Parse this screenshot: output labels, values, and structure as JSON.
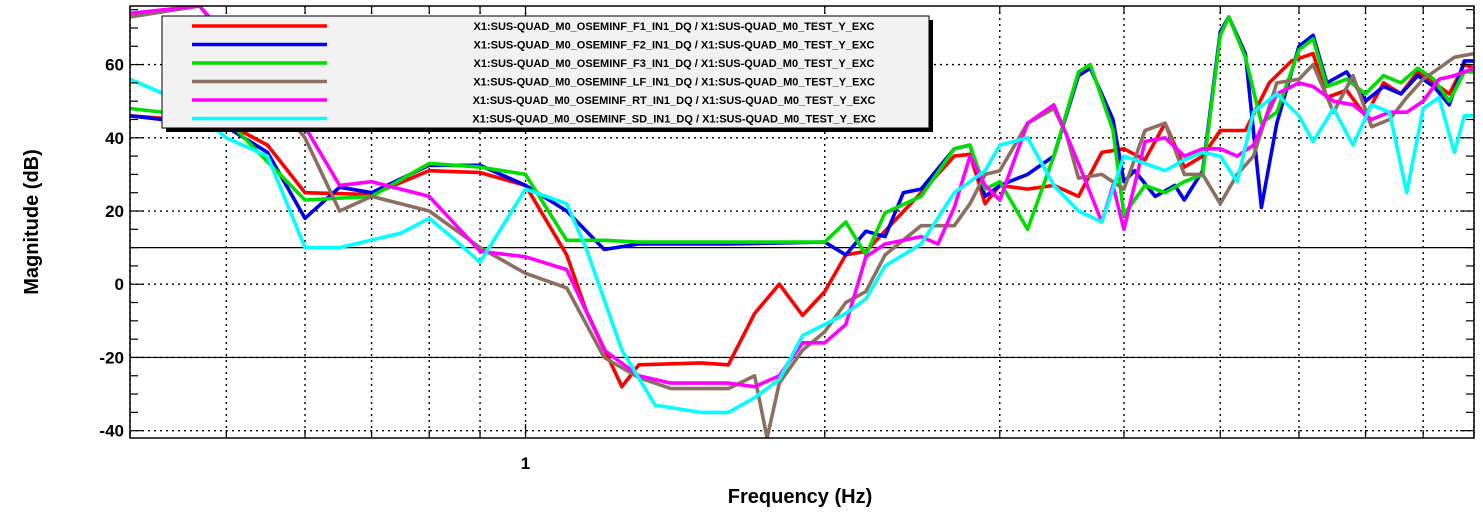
{
  "chart_data": {
    "type": "line",
    "title": "",
    "xlabel": "Frequency (Hz)",
    "ylabel": "Magnitude (dB)",
    "x_scale": "log",
    "xlim": [
      0.4,
      9.0
    ],
    "ylim": [
      -42,
      76
    ],
    "x_tick_labels": [
      {
        "value": 1,
        "label": "1"
      }
    ],
    "y_ticks": [
      -40,
      -20,
      0,
      20,
      40,
      60
    ],
    "y_tick_labels": [
      "-40",
      "-20",
      "0",
      "20",
      "40",
      "60"
    ],
    "grid": true,
    "legend_position": "top-left",
    "series": [
      {
        "name": "X1:SUS-QUAD_M0_OSEMINF_F1_IN1_DQ / X1:SUS-QUAD_M0_TEST_Y_EXC",
        "color": "#ff0000",
        "points": [
          [
            0.4,
            46
          ],
          [
            0.5,
            44
          ],
          [
            0.55,
            38
          ],
          [
            0.6,
            25
          ],
          [
            0.7,
            24.5
          ],
          [
            0.8,
            31
          ],
          [
            0.9,
            30.5
          ],
          [
            1.0,
            27
          ],
          [
            1.1,
            8
          ],
          [
            1.15,
            -7
          ],
          [
            1.25,
            -28
          ],
          [
            1.3,
            -22
          ],
          [
            1.5,
            -21.5
          ],
          [
            1.6,
            -22
          ],
          [
            1.7,
            -8
          ],
          [
            1.8,
            0
          ],
          [
            1.9,
            -8.5
          ],
          [
            2.0,
            -2
          ],
          [
            2.1,
            8
          ],
          [
            2.2,
            9
          ],
          [
            2.5,
            25
          ],
          [
            2.7,
            35
          ],
          [
            2.8,
            35.5
          ],
          [
            2.9,
            22
          ],
          [
            3.0,
            27
          ],
          [
            3.2,
            26
          ],
          [
            3.4,
            27
          ],
          [
            3.6,
            24
          ],
          [
            3.8,
            36
          ],
          [
            4.0,
            37
          ],
          [
            4.2,
            34
          ],
          [
            4.4,
            44
          ],
          [
            4.6,
            32
          ],
          [
            4.8,
            35
          ],
          [
            5.0,
            42
          ],
          [
            5.3,
            42
          ],
          [
            5.6,
            55
          ],
          [
            5.9,
            61
          ],
          [
            6.2,
            63
          ],
          [
            6.4,
            51
          ],
          [
            6.7,
            53
          ],
          [
            7.0,
            46
          ],
          [
            7.3,
            55
          ],
          [
            7.6,
            52
          ],
          [
            7.9,
            58
          ],
          [
            8.2,
            55
          ],
          [
            8.5,
            52
          ],
          [
            8.8,
            60
          ],
          [
            9.0,
            59
          ]
        ]
      },
      {
        "name": "X1:SUS-QUAD_M0_OSEMINF_F2_IN1_DQ / X1:SUS-QUAD_M0_TEST_Y_EXC",
        "color": "#0000ee",
        "points": [
          [
            0.4,
            46
          ],
          [
            0.5,
            43
          ],
          [
            0.55,
            36
          ],
          [
            0.6,
            18
          ],
          [
            0.65,
            26.5
          ],
          [
            0.7,
            25
          ],
          [
            0.8,
            32.5
          ],
          [
            0.9,
            32.5
          ],
          [
            1.0,
            27
          ],
          [
            1.1,
            20
          ],
          [
            1.2,
            9.5
          ],
          [
            1.3,
            11
          ],
          [
            1.6,
            11
          ],
          [
            2.0,
            11.5
          ],
          [
            2.1,
            8
          ],
          [
            2.2,
            14.5
          ],
          [
            2.3,
            13
          ],
          [
            2.4,
            25
          ],
          [
            2.5,
            26
          ],
          [
            2.7,
            37
          ],
          [
            2.8,
            38
          ],
          [
            2.9,
            24
          ],
          [
            3.0,
            27
          ],
          [
            3.2,
            30
          ],
          [
            3.4,
            35
          ],
          [
            3.6,
            57
          ],
          [
            3.7,
            59
          ],
          [
            3.9,
            45
          ],
          [
            4.0,
            28
          ],
          [
            4.1,
            31
          ],
          [
            4.3,
            24
          ],
          [
            4.5,
            27
          ],
          [
            4.6,
            23
          ],
          [
            4.8,
            31
          ],
          [
            5.0,
            69
          ],
          [
            5.1,
            73
          ],
          [
            5.3,
            63
          ],
          [
            5.5,
            21
          ],
          [
            5.7,
            44
          ],
          [
            6.0,
            65
          ],
          [
            6.2,
            68
          ],
          [
            6.4,
            55
          ],
          [
            6.7,
            58
          ],
          [
            7.0,
            50
          ],
          [
            7.3,
            54
          ],
          [
            7.6,
            52
          ],
          [
            7.9,
            57
          ],
          [
            8.2,
            54
          ],
          [
            8.5,
            49
          ],
          [
            8.8,
            61
          ],
          [
            9.0,
            61
          ]
        ]
      },
      {
        "name": "X1:SUS-QUAD_M0_OSEMINF_F3_IN1_DQ / X1:SUS-QUAD_M0_TEST_Y_EXC",
        "color": "#00dd00",
        "points": [
          [
            0.4,
            48
          ],
          [
            0.5,
            45
          ],
          [
            0.6,
            23
          ],
          [
            0.7,
            24
          ],
          [
            0.8,
            33
          ],
          [
            0.9,
            32
          ],
          [
            1.0,
            30
          ],
          [
            1.1,
            12
          ],
          [
            1.2,
            12
          ],
          [
            1.3,
            11.5
          ],
          [
            1.6,
            11.5
          ],
          [
            2.0,
            11.5
          ],
          [
            2.1,
            17
          ],
          [
            2.2,
            8
          ],
          [
            2.3,
            19.5
          ],
          [
            2.5,
            24
          ],
          [
            2.7,
            37
          ],
          [
            2.8,
            38
          ],
          [
            2.9,
            26
          ],
          [
            3.0,
            28
          ],
          [
            3.2,
            15
          ],
          [
            3.4,
            35
          ],
          [
            3.6,
            58
          ],
          [
            3.7,
            60
          ],
          [
            3.9,
            42
          ],
          [
            4.0,
            19
          ],
          [
            4.2,
            27
          ],
          [
            4.4,
            25
          ],
          [
            4.6,
            28
          ],
          [
            4.8,
            30
          ],
          [
            5.0,
            68
          ],
          [
            5.1,
            73
          ],
          [
            5.3,
            62
          ],
          [
            5.5,
            44
          ],
          [
            5.7,
            47
          ],
          [
            6.0,
            64
          ],
          [
            6.2,
            67
          ],
          [
            6.4,
            54
          ],
          [
            6.7,
            56
          ],
          [
            7.0,
            52
          ],
          [
            7.3,
            57
          ],
          [
            7.6,
            55
          ],
          [
            7.9,
            59
          ],
          [
            8.2,
            56
          ],
          [
            8.5,
            50
          ],
          [
            8.8,
            58
          ],
          [
            9.0,
            58
          ]
        ]
      },
      {
        "name": "X1:SUS-QUAD_M0_OSEMINF_LF_IN1_DQ / X1:SUS-QUAD_M0_TEST_Y_EXC",
        "color": "#8b6f60",
        "points": [
          [
            0.4,
            73
          ],
          [
            0.47,
            76
          ],
          [
            0.6,
            40
          ],
          [
            0.65,
            20
          ],
          [
            0.7,
            24
          ],
          [
            0.8,
            20
          ],
          [
            0.9,
            10
          ],
          [
            1.0,
            3
          ],
          [
            1.1,
            -1
          ],
          [
            1.2,
            -20
          ],
          [
            1.3,
            -25.5
          ],
          [
            1.4,
            -28.5
          ],
          [
            1.6,
            -28.5
          ],
          [
            1.7,
            -25
          ],
          [
            1.75,
            -42
          ],
          [
            1.8,
            -27
          ],
          [
            1.9,
            -18
          ],
          [
            2.0,
            -13
          ],
          [
            2.1,
            -5
          ],
          [
            2.2,
            -2
          ],
          [
            2.3,
            8
          ],
          [
            2.5,
            16
          ],
          [
            2.7,
            16
          ],
          [
            2.8,
            22
          ],
          [
            2.9,
            30
          ],
          [
            3.0,
            31
          ],
          [
            3.2,
            44
          ],
          [
            3.4,
            48
          ],
          [
            3.5,
            41
          ],
          [
            3.6,
            29
          ],
          [
            3.8,
            30
          ],
          [
            4.0,
            26
          ],
          [
            4.2,
            42
          ],
          [
            4.4,
            44
          ],
          [
            4.6,
            30
          ],
          [
            4.8,
            30
          ],
          [
            5.0,
            22
          ],
          [
            5.2,
            30
          ],
          [
            5.4,
            35
          ],
          [
            5.7,
            55
          ],
          [
            6.0,
            56
          ],
          [
            6.2,
            60
          ],
          [
            6.5,
            47
          ],
          [
            6.8,
            57
          ],
          [
            7.1,
            43
          ],
          [
            7.4,
            45
          ],
          [
            7.7,
            51
          ],
          [
            8.0,
            56
          ],
          [
            8.3,
            59
          ],
          [
            8.6,
            62
          ],
          [
            9.0,
            63
          ]
        ]
      },
      {
        "name": "X1:SUS-QUAD_M0_OSEMINF_RT_IN1_DQ / X1:SUS-QUAD_M0_TEST_Y_EXC",
        "color": "#ff00ff",
        "points": [
          [
            0.4,
            74
          ],
          [
            0.47,
            76
          ],
          [
            0.6,
            43
          ],
          [
            0.65,
            27
          ],
          [
            0.7,
            28
          ],
          [
            0.8,
            24
          ],
          [
            0.9,
            9
          ],
          [
            1.0,
            7.5
          ],
          [
            1.1,
            4
          ],
          [
            1.2,
            -18
          ],
          [
            1.3,
            -25
          ],
          [
            1.4,
            -27
          ],
          [
            1.6,
            -27
          ],
          [
            1.7,
            -28
          ],
          [
            1.8,
            -25
          ],
          [
            1.9,
            -16
          ],
          [
            2.0,
            -16
          ],
          [
            2.1,
            -11
          ],
          [
            2.2,
            7.5
          ],
          [
            2.3,
            11
          ],
          [
            2.5,
            13
          ],
          [
            2.6,
            11
          ],
          [
            2.7,
            21
          ],
          [
            2.8,
            35
          ],
          [
            2.9,
            27
          ],
          [
            3.0,
            23
          ],
          [
            3.2,
            44
          ],
          [
            3.4,
            49
          ],
          [
            3.6,
            33
          ],
          [
            3.8,
            17
          ],
          [
            3.9,
            27
          ],
          [
            4.0,
            15
          ],
          [
            4.2,
            39
          ],
          [
            4.4,
            40
          ],
          [
            4.6,
            35
          ],
          [
            4.8,
            37
          ],
          [
            5.0,
            37
          ],
          [
            5.2,
            35
          ],
          [
            5.4,
            38
          ],
          [
            5.7,
            52
          ],
          [
            6.0,
            55
          ],
          [
            6.2,
            54
          ],
          [
            6.5,
            50
          ],
          [
            6.8,
            49
          ],
          [
            7.1,
            45
          ],
          [
            7.4,
            47
          ],
          [
            7.7,
            47
          ],
          [
            8.0,
            50
          ],
          [
            8.3,
            56
          ],
          [
            8.6,
            57
          ],
          [
            9.0,
            59
          ]
        ]
      },
      {
        "name": "X1:SUS-QUAD_M0_OSEMINF_SD_IN1_DQ / X1:SUS-QUAD_M0_TEST_Y_EXC",
        "color": "#00ffff",
        "points": [
          [
            0.4,
            56
          ],
          [
            0.45,
            50
          ],
          [
            0.5,
            40
          ],
          [
            0.55,
            35
          ],
          [
            0.6,
            10
          ],
          [
            0.65,
            10
          ],
          [
            0.75,
            14
          ],
          [
            0.8,
            18
          ],
          [
            0.85,
            12
          ],
          [
            0.9,
            6
          ],
          [
            1.0,
            26
          ],
          [
            1.1,
            22
          ],
          [
            1.15,
            10
          ],
          [
            1.25,
            -18
          ],
          [
            1.35,
            -33
          ],
          [
            1.5,
            -35
          ],
          [
            1.6,
            -35
          ],
          [
            1.7,
            -31
          ],
          [
            1.8,
            -26
          ],
          [
            1.9,
            -14
          ],
          [
            2.0,
            -11
          ],
          [
            2.1,
            -8
          ],
          [
            2.2,
            -4
          ],
          [
            2.3,
            5
          ],
          [
            2.5,
            11
          ],
          [
            2.7,
            25
          ],
          [
            2.8,
            28
          ],
          [
            2.9,
            31
          ],
          [
            3.0,
            38
          ],
          [
            3.2,
            40
          ],
          [
            3.4,
            27
          ],
          [
            3.6,
            20
          ],
          [
            3.8,
            17
          ],
          [
            4.0,
            35
          ],
          [
            4.2,
            33
          ],
          [
            4.4,
            31
          ],
          [
            4.6,
            34
          ],
          [
            4.8,
            36
          ],
          [
            5.0,
            35
          ],
          [
            5.2,
            28
          ],
          [
            5.4,
            47
          ],
          [
            5.7,
            52
          ],
          [
            6.0,
            46
          ],
          [
            6.2,
            39
          ],
          [
            6.5,
            48
          ],
          [
            6.8,
            38
          ],
          [
            7.1,
            49
          ],
          [
            7.4,
            47
          ],
          [
            7.7,
            25
          ],
          [
            8.0,
            48
          ],
          [
            8.3,
            51
          ],
          [
            8.6,
            36
          ],
          [
            8.8,
            46
          ],
          [
            9.0,
            46
          ]
        ]
      }
    ]
  }
}
